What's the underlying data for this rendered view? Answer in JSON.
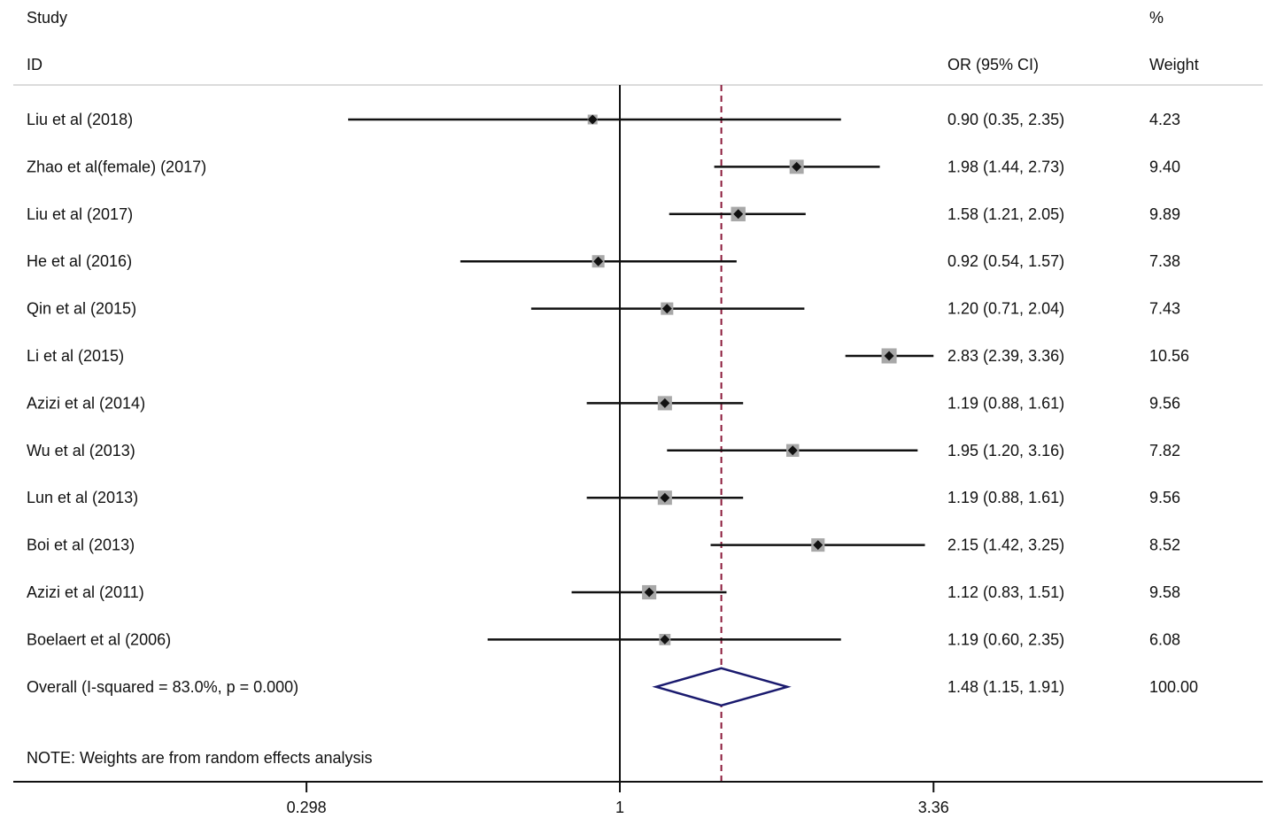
{
  "header": {
    "study_label": "Study",
    "id_label": "ID",
    "or_label": "OR (95% CI)",
    "pct_label": "%",
    "weight_label": "Weight"
  },
  "note": "NOTE: Weights are from random effects analysis",
  "colors": {
    "line": "#111111",
    "weight_box": "#a8a8a8",
    "diamond": "#1a1a6e",
    "reference_line": "#8b1a3a"
  },
  "chart_data": {
    "type": "forest",
    "x_scale": "log",
    "x_ticks": [
      0.298,
      1,
      3.36
    ],
    "x_tick_labels": [
      "0.298",
      "1",
      "3.36"
    ],
    "null_line": 1,
    "pooled_line": 1.48,
    "studies": [
      {
        "id": "Liu et al (2018)",
        "or": 0.9,
        "lo": 0.35,
        "hi": 2.35,
        "or_text": "0.90 (0.35, 2.35)",
        "weight": 4.23,
        "weight_text": "4.23"
      },
      {
        "id": "Zhao et al(female) (2017)",
        "or": 1.98,
        "lo": 1.44,
        "hi": 2.73,
        "or_text": "1.98 (1.44, 2.73)",
        "weight": 9.4,
        "weight_text": "9.40"
      },
      {
        "id": "Liu et al (2017)",
        "or": 1.58,
        "lo": 1.21,
        "hi": 2.05,
        "or_text": "1.58 (1.21, 2.05)",
        "weight": 9.89,
        "weight_text": "9.89"
      },
      {
        "id": "He et al (2016)",
        "or": 0.92,
        "lo": 0.54,
        "hi": 1.57,
        "or_text": "0.92 (0.54, 1.57)",
        "weight": 7.38,
        "weight_text": "7.38"
      },
      {
        "id": "Qin et al (2015)",
        "or": 1.2,
        "lo": 0.71,
        "hi": 2.04,
        "or_text": "1.20 (0.71, 2.04)",
        "weight": 7.43,
        "weight_text": "7.43"
      },
      {
        "id": "Li et al (2015)",
        "or": 2.83,
        "lo": 2.39,
        "hi": 3.36,
        "or_text": "2.83 (2.39, 3.36)",
        "weight": 10.56,
        "weight_text": "10.56"
      },
      {
        "id": "Azizi et al (2014)",
        "or": 1.19,
        "lo": 0.88,
        "hi": 1.61,
        "or_text": "1.19 (0.88, 1.61)",
        "weight": 9.56,
        "weight_text": "9.56"
      },
      {
        "id": "Wu et al (2013)",
        "or": 1.95,
        "lo": 1.2,
        "hi": 3.16,
        "or_text": "1.95 (1.20, 3.16)",
        "weight": 7.82,
        "weight_text": "7.82"
      },
      {
        "id": "Lun et al (2013)",
        "or": 1.19,
        "lo": 0.88,
        "hi": 1.61,
        "or_text": "1.19 (0.88, 1.61)",
        "weight": 9.56,
        "weight_text": "9.56"
      },
      {
        "id": "Boi et al (2013)",
        "or": 2.15,
        "lo": 1.42,
        "hi": 3.25,
        "or_text": "2.15 (1.42, 3.25)",
        "weight": 8.52,
        "weight_text": "8.52"
      },
      {
        "id": "Azizi et al (2011)",
        "or": 1.12,
        "lo": 0.83,
        "hi": 1.51,
        "or_text": "1.12 (0.83, 1.51)",
        "weight": 9.58,
        "weight_text": "9.58"
      },
      {
        "id": "Boelaert et al (2006)",
        "or": 1.19,
        "lo": 0.6,
        "hi": 2.35,
        "or_text": "1.19 (0.60, 2.35)",
        "weight": 6.08,
        "weight_text": "6.08"
      }
    ],
    "overall": {
      "id": "Overall  (I-squared = 83.0%, p = 0.000)",
      "or": 1.48,
      "lo": 1.15,
      "hi": 1.91,
      "or_text": "1.48 (1.15, 1.91)",
      "weight": 100.0,
      "weight_text": "100.00"
    }
  }
}
